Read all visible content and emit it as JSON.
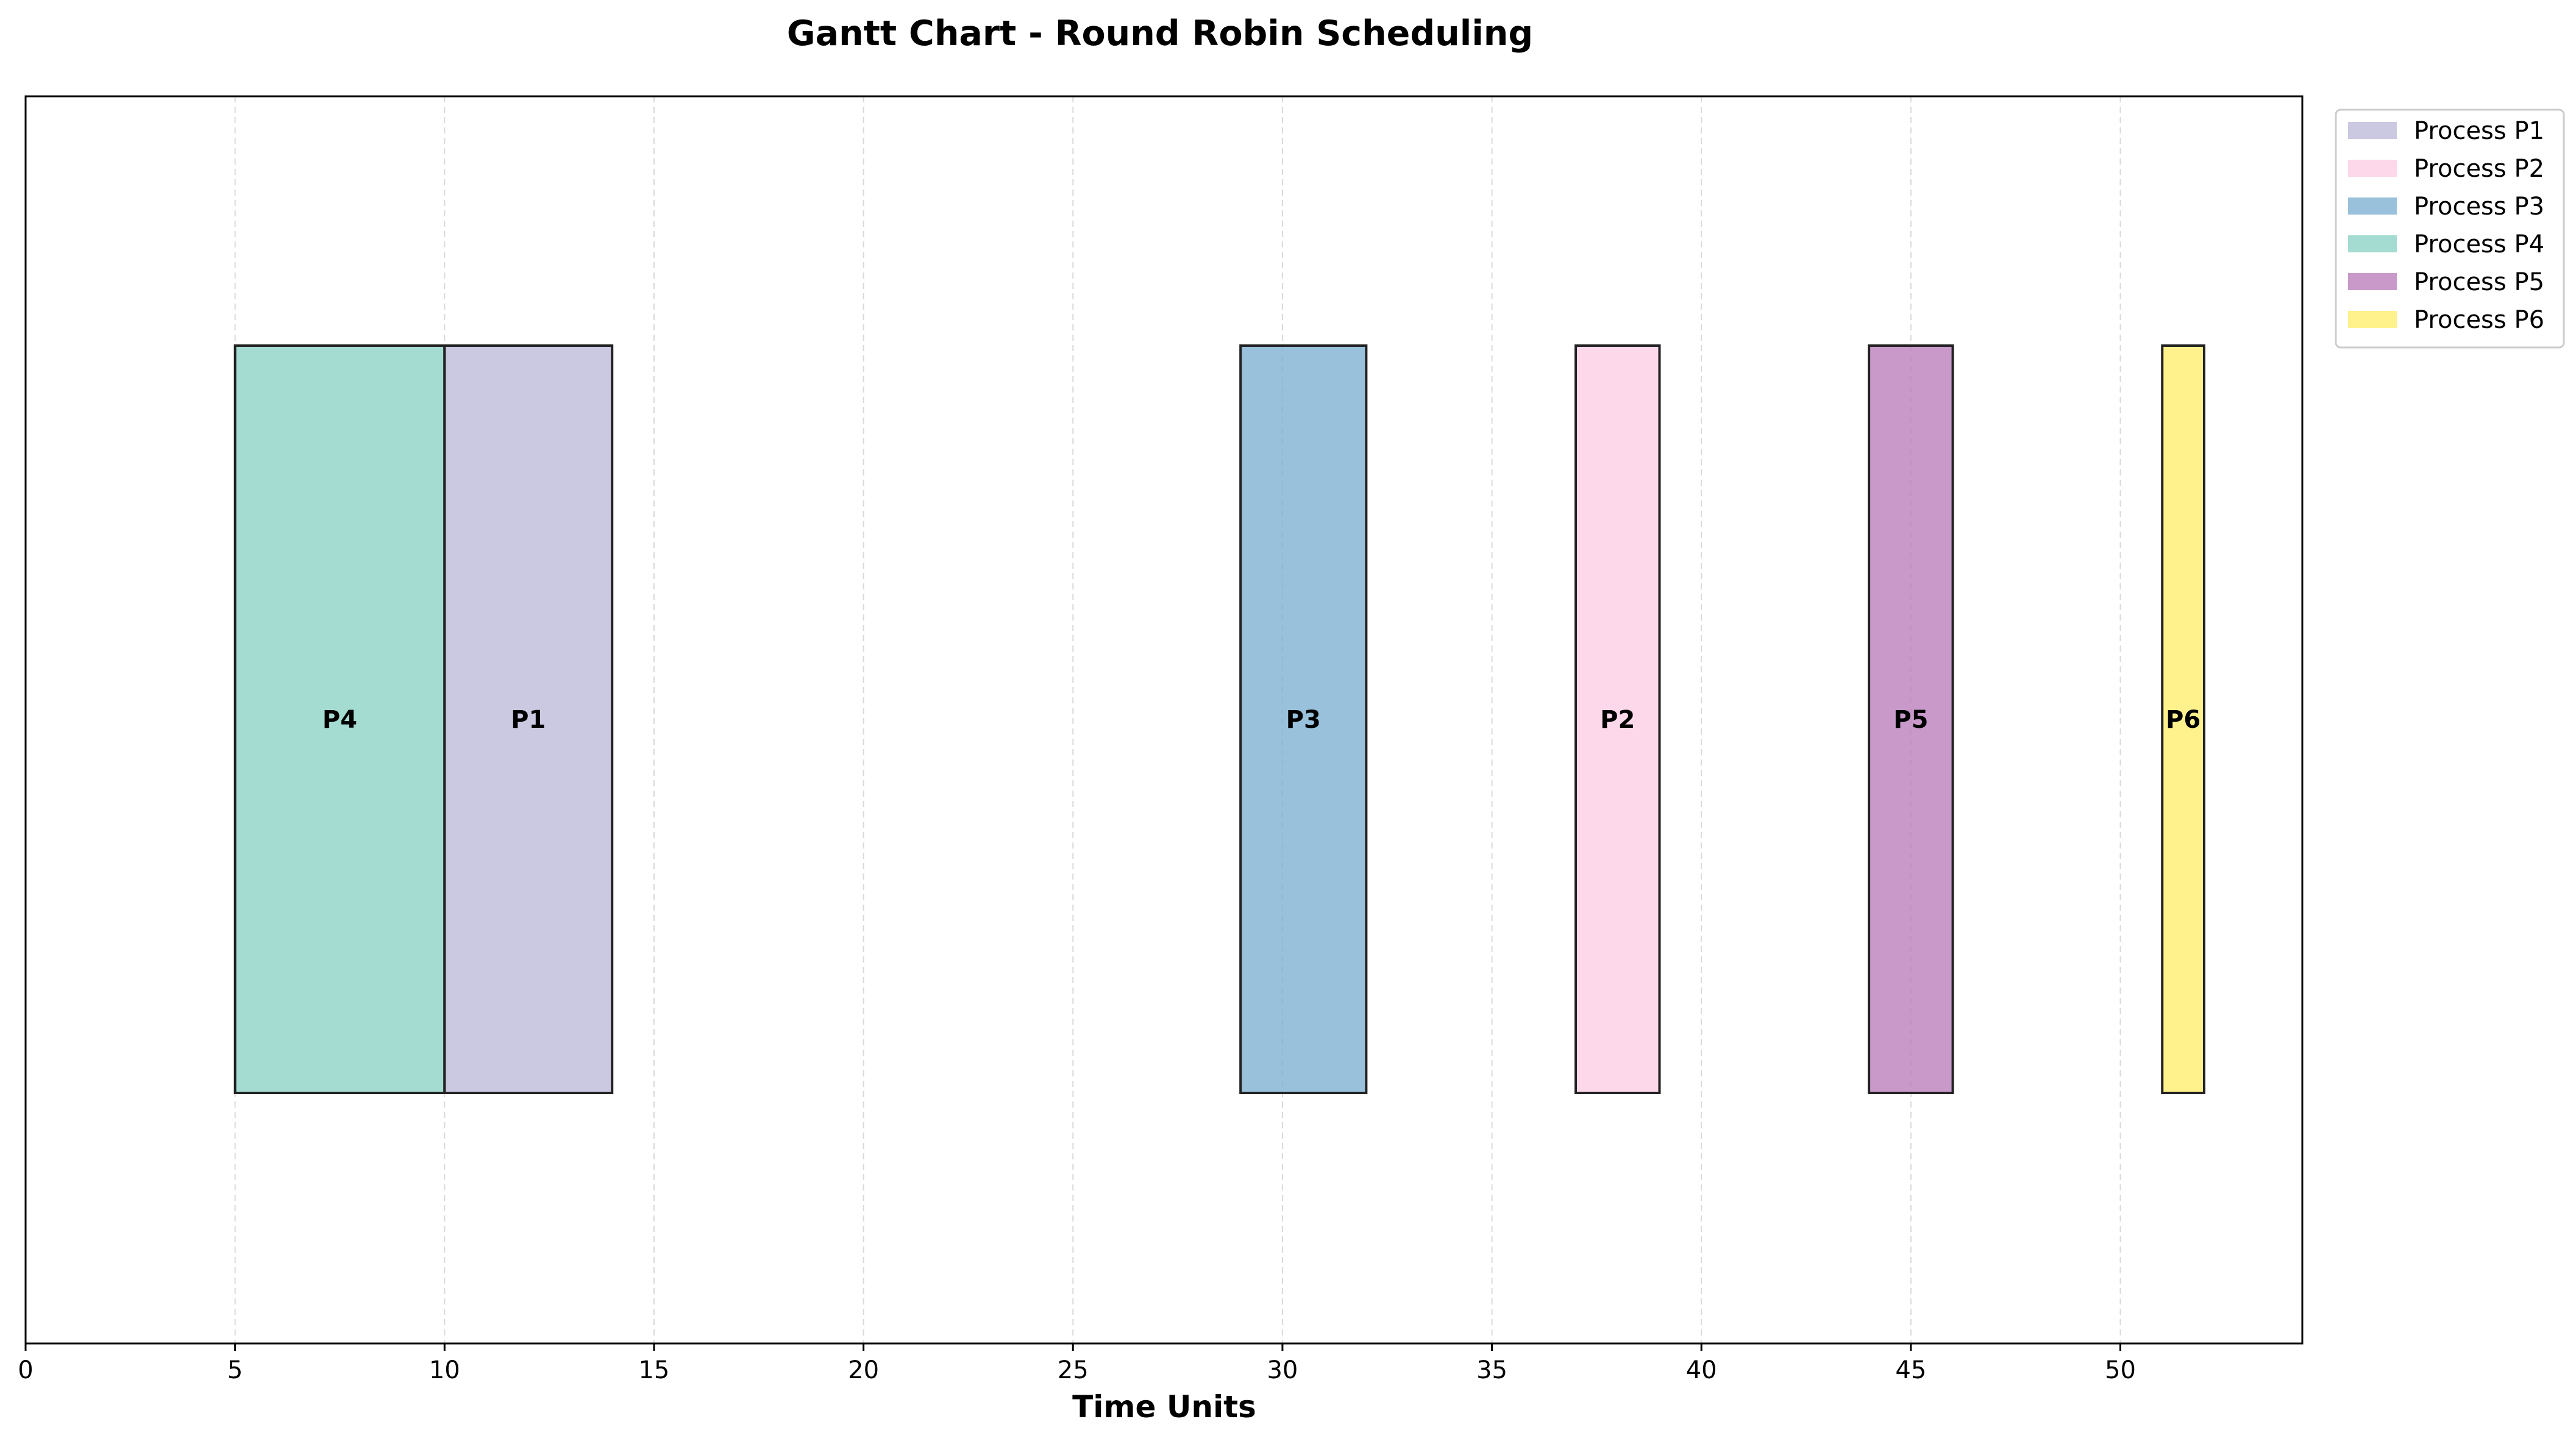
{
  "chart_data": {
    "type": "gantt",
    "title": "Gantt Chart - Round Robin Scheduling",
    "xlabel": "Time Units",
    "ylabel": "",
    "xlim": [
      0,
      54.3
    ],
    "ylim": [
      0,
      1
    ],
    "x_ticks": [
      "0",
      "5",
      "10",
      "15",
      "20",
      "25",
      "30",
      "35",
      "40",
      "45",
      "50"
    ],
    "grid": "vertical dashed",
    "legend_position": "outside upper right",
    "bars": [
      {
        "process": "P4",
        "label": "P4",
        "start": 5,
        "end": 10,
        "color": "#8dd3c7"
      },
      {
        "process": "P1",
        "label": "P1",
        "start": 10,
        "end": 14,
        "color": "#bebada"
      },
      {
        "process": "P3",
        "label": "P3",
        "start": 29,
        "end": 32,
        "color": "#80b1d3"
      },
      {
        "process": "P2",
        "label": "P2",
        "start": 37,
        "end": 39,
        "color": "#fccde5"
      },
      {
        "process": "P5",
        "label": "P5",
        "start": 44,
        "end": 46,
        "color": "#bc80bd"
      },
      {
        "process": "P6",
        "label": "P6",
        "start": 51,
        "end": 52,
        "color": "#ffed6f"
      }
    ],
    "legend": [
      {
        "label": "Process P1",
        "color": "#bebada"
      },
      {
        "label": "Process P2",
        "color": "#fccde5"
      },
      {
        "label": "Process P3",
        "color": "#80b1d3"
      },
      {
        "label": "Process P4",
        "color": "#8dd3c7"
      },
      {
        "label": "Process P5",
        "color": "#bc80bd"
      },
      {
        "label": "Process P6",
        "color": "#ffed6f"
      }
    ]
  }
}
